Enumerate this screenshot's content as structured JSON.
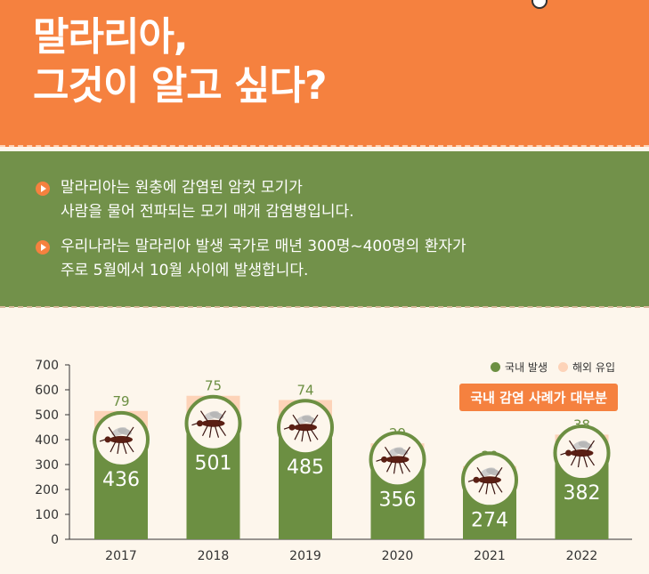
{
  "header": {
    "title_line1": "말라리아,",
    "title_line2": "그것이 알고 싶다?"
  },
  "bullets": [
    {
      "line1": "말라리아는 원충에 감염된 암컷 모기가",
      "line2": "사람을 물어 전파되는 모기 매개 감염병입니다."
    },
    {
      "line1": "우리나라는 말라리아 발생 국가로 매년 300명~400명의 환자가",
      "line2": "주로 5월에서 10월 사이에 발생합니다."
    }
  ],
  "badge": "국내 감염 사례가 대부분",
  "colors": {
    "orange": "#f5813f",
    "green_panel": "#72914a",
    "bar_domestic": "#6c8f42",
    "bar_imported": "#fdd3b8",
    "imported_label": "#6c8f42"
  },
  "chart_data": {
    "type": "bar",
    "stacked": true,
    "categories": [
      "2017",
      "2018",
      "2019",
      "2020",
      "2021",
      "2022"
    ],
    "series": [
      {
        "name": "국내 발생",
        "values": [
          436,
          501,
          485,
          356,
          274,
          382
        ]
      },
      {
        "name": "해외 유입",
        "values": [
          79,
          75,
          74,
          29,
          20,
          38
        ]
      }
    ],
    "ylim": [
      0,
      700
    ],
    "yticks": [
      "0",
      "100",
      "200",
      "300",
      "400",
      "500",
      "600",
      "700"
    ],
    "legend": "top-right",
    "grid": false,
    "icons": "mosquito-icon"
  }
}
